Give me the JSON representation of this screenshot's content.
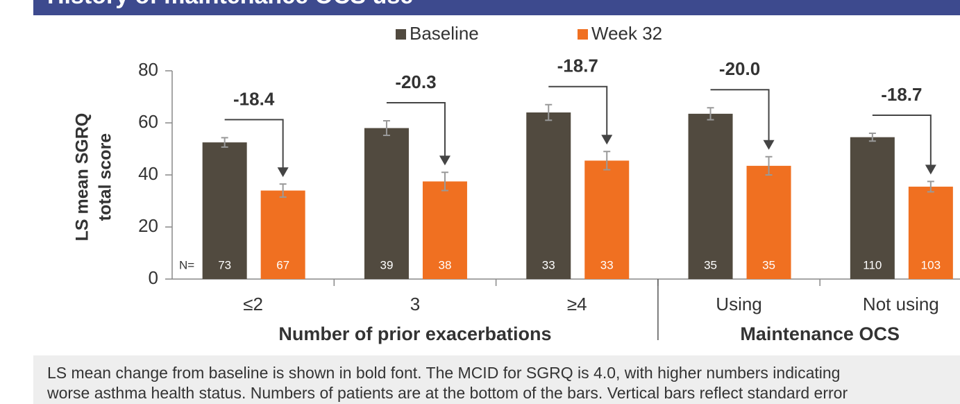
{
  "chart_data": {
    "type": "bar",
    "title": "History of maintenance OCS use",
    "categories": [
      "≤2",
      "3",
      "≥4",
      "Using",
      "Not using"
    ],
    "series": [
      {
        "name": "Baseline",
        "color": "#514a3f",
        "values": [
          52.5,
          58,
          64,
          63.5,
          54.5
        ],
        "errors": [
          1.8,
          2.8,
          3,
          2.3,
          1.5
        ],
        "n": [
          73,
          39,
          33,
          35,
          110
        ]
      },
      {
        "name": "Week 32",
        "color": "#f07021",
        "values": [
          34,
          37.5,
          45.5,
          43.5,
          35.5
        ],
        "errors": [
          2.5,
          3.5,
          3.5,
          3.5,
          2
        ],
        "n": [
          67,
          38,
          33,
          35,
          103
        ]
      }
    ],
    "changes": {
      "values": [
        -18.4,
        -20.3,
        -18.7,
        -20,
        -18.7
      ],
      "value_labels": [
        "-18.4",
        "-20.3",
        "-18.7",
        "-20.0",
        "-18.7"
      ]
    },
    "n_label": "N=",
    "groups": [
      {
        "label": "Number of prior exacerbations",
        "span": [
          0,
          2
        ]
      },
      {
        "label": "Maintenance OCS",
        "span": [
          3,
          4
        ]
      }
    ],
    "ylabel": [
      "LS mean SGRQ",
      "total score"
    ],
    "ylim": [
      0,
      80
    ],
    "yticks": [
      0,
      20,
      40,
      60,
      80
    ],
    "footnote": [
      "LS mean change from baseline is shown in bold font. The MCID for SGRQ is 4.0, with higher numbers indicating",
      "worse asthma health status. Numbers of patients are at the bottom of the bars. Vertical bars reflect standard error"
    ]
  }
}
